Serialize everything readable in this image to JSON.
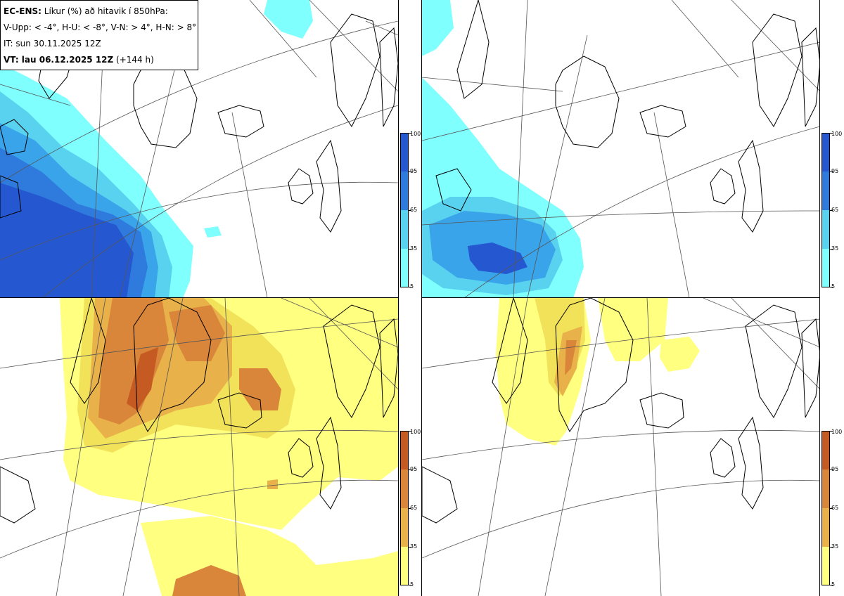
{
  "header": {
    "model": "EC-ENS:",
    "title": "Líkur (%) að hitavik í 850hPa:",
    "classes": "V-Upp: < -4°, H-U: < -8°, V-N: > 4°, H-N: > 8°",
    "init_time": "IT: sun 30.11.2025 12Z",
    "valid_label": "VT: lau 06.12.2025 12Z",
    "lead": "(+144 h)"
  },
  "colorbar_ticks": [
    "100",
    "95",
    "65",
    "35",
    "5"
  ],
  "colors": {
    "cold": [
      "#80ffff",
      "#59d2f0",
      "#3aa4ea",
      "#2f7bdd",
      "#2558d0"
    ],
    "warm": [
      "#ffff80",
      "#f2e25a",
      "#e8b149",
      "#d9853a",
      "#c55a22"
    ]
  },
  "panels": [
    {
      "id": "upper-left",
      "meaning": "V-Upp"
    },
    {
      "id": "upper-right",
      "meaning": "H-U"
    },
    {
      "id": "lower-left",
      "meaning": "V-N"
    },
    {
      "id": "lower-right",
      "meaning": "H-N"
    }
  ]
}
